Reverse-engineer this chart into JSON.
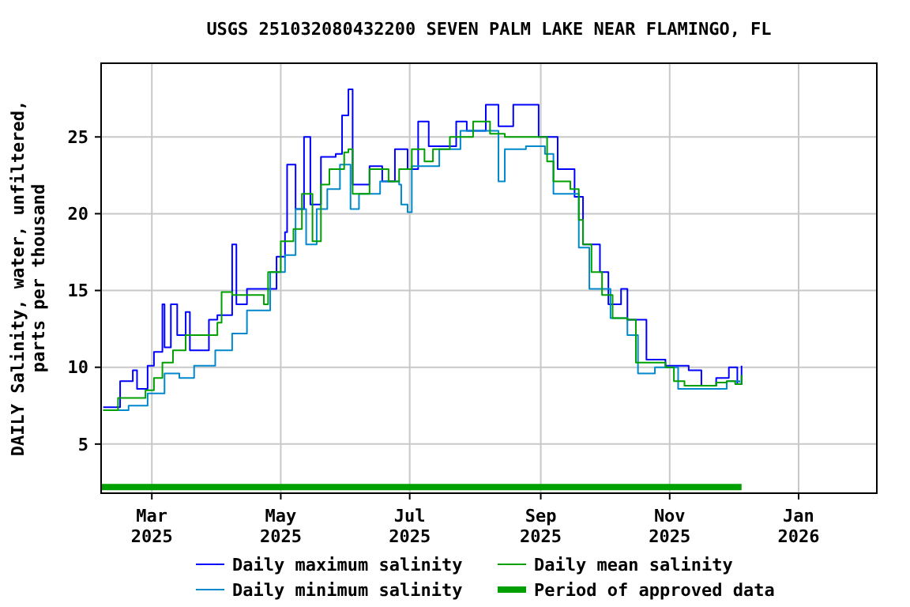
{
  "chart_data": {
    "type": "step",
    "title": "USGS 251032080432200 SEVEN PALM LAKE NEAR FLAMINGO, FL",
    "ylabel": "DAILY Salinity, water, unfiltered,\nparts per thousand",
    "xlim": [
      "2025-02-05",
      "2026-02-07"
    ],
    "xticks": [
      {
        "value": "2025-03-01",
        "label": "Mar 2025"
      },
      {
        "value": "2025-05-01",
        "label": "May 2025"
      },
      {
        "value": "2025-07-01",
        "label": "Jul 2025"
      },
      {
        "value": "2025-09-01",
        "label": "Sep 2025"
      },
      {
        "value": "2025-11-01",
        "label": "Nov 2025"
      },
      {
        "value": "2026-01-01",
        "label": "Jan 2026"
      }
    ],
    "ylim": [
      1.8,
      29.8
    ],
    "yticks": [
      5,
      10,
      15,
      20,
      25
    ],
    "grid": true,
    "legend": "bottom",
    "series": [
      {
        "name": "Daily maximum salinity",
        "color": "#0000ff",
        "x": [
          "2025-02-06",
          "2025-02-14",
          "2025-02-20",
          "2025-02-22",
          "2025-02-27",
          "2025-03-02",
          "2025-03-06",
          "2025-03-07",
          "2025-03-10",
          "2025-03-13",
          "2025-03-17",
          "2025-03-19",
          "2025-03-28",
          "2025-04-01",
          "2025-04-08",
          "2025-04-10",
          "2025-04-15",
          "2025-04-23",
          "2025-04-29",
          "2025-05-03",
          "2025-05-04",
          "2025-05-08",
          "2025-05-12",
          "2025-05-15",
          "2025-05-20",
          "2025-05-27",
          "2025-05-30",
          "2025-06-02",
          "2025-06-04",
          "2025-06-12",
          "2025-06-18",
          "2025-06-24",
          "2025-06-30",
          "2025-07-05",
          "2025-07-10",
          "2025-07-23",
          "2025-07-28",
          "2025-08-06",
          "2025-08-12",
          "2025-08-19",
          "2025-08-25",
          "2025-08-31",
          "2025-09-09",
          "2025-09-17",
          "2025-09-21",
          "2025-09-29",
          "2025-10-03",
          "2025-10-09",
          "2025-10-12",
          "2025-10-21",
          "2025-10-30",
          "2025-11-10",
          "2025-11-16",
          "2025-11-23",
          "2025-11-29",
          "2025-12-03",
          "2025-12-05"
        ],
        "values": [
          7.4,
          9.1,
          9.8,
          8.6,
          10.1,
          11.0,
          14.1,
          11.3,
          14.1,
          12.1,
          13.6,
          11.1,
          13.1,
          13.4,
          18.0,
          14.1,
          15.1,
          15.1,
          17.2,
          18.8,
          23.2,
          20.3,
          25.0,
          20.6,
          23.7,
          23.9,
          26.4,
          28.1,
          21.9,
          23.1,
          22.1,
          24.2,
          22.9,
          26.0,
          24.4,
          26.0,
          25.4,
          27.1,
          25.7,
          27.1,
          27.1,
          25.0,
          22.9,
          21.1,
          18.0,
          16.2,
          14.1,
          15.1,
          13.1,
          10.5,
          10.1,
          9.8,
          8.8,
          9.3,
          10.0,
          8.9,
          10.1
        ]
      },
      {
        "name": "Daily minimum salinity",
        "color": "#0088cc",
        "x": [
          "2025-02-06",
          "2025-02-18",
          "2025-02-27",
          "2025-03-07",
          "2025-03-14",
          "2025-03-21",
          "2025-03-31",
          "2025-04-08",
          "2025-04-15",
          "2025-04-26",
          "2025-05-03",
          "2025-05-08",
          "2025-05-13",
          "2025-05-18",
          "2025-05-23",
          "2025-05-29",
          "2025-06-03",
          "2025-06-07",
          "2025-06-17",
          "2025-06-26",
          "2025-06-27",
          "2025-06-30",
          "2025-07-02",
          "2025-07-15",
          "2025-07-25",
          "2025-08-12",
          "2025-08-15",
          "2025-08-25",
          "2025-09-03",
          "2025-09-07",
          "2025-09-12",
          "2025-09-19",
          "2025-09-24",
          "2025-09-30",
          "2025-10-04",
          "2025-10-12",
          "2025-10-17",
          "2025-10-25",
          "2025-11-05",
          "2025-11-17",
          "2025-11-28",
          "2025-12-04"
        ],
        "values": [
          7.2,
          7.5,
          8.3,
          9.6,
          9.3,
          10.1,
          11.1,
          12.2,
          13.7,
          16.2,
          17.3,
          20.3,
          18.0,
          20.3,
          21.6,
          23.2,
          20.3,
          21.3,
          22.1,
          21.9,
          20.6,
          20.1,
          23.1,
          24.2,
          25.4,
          22.1,
          24.2,
          24.4,
          23.9,
          21.3,
          21.3,
          17.8,
          15.1,
          15.1,
          13.2,
          12.1,
          9.6,
          10.0,
          8.6,
          8.6,
          9.1,
          9.0
        ]
      },
      {
        "name": "Daily mean salinity",
        "color": "#00a000",
        "x": [
          "2025-02-06",
          "2025-02-13",
          "2025-02-26",
          "2025-03-02",
          "2025-03-06",
          "2025-03-11",
          "2025-03-17",
          "2025-03-24",
          "2025-04-01",
          "2025-04-03",
          "2025-04-08",
          "2025-04-23",
          "2025-04-25",
          "2025-05-01",
          "2025-05-07",
          "2025-05-11",
          "2025-05-16",
          "2025-05-20",
          "2025-05-24",
          "2025-05-31",
          "2025-06-02",
          "2025-06-04",
          "2025-06-10",
          "2025-06-12",
          "2025-06-21",
          "2025-06-26",
          "2025-07-02",
          "2025-07-08",
          "2025-07-12",
          "2025-07-20",
          "2025-07-31",
          "2025-08-08",
          "2025-08-15",
          "2025-08-31",
          "2025-09-04",
          "2025-09-07",
          "2025-09-15",
          "2025-09-19",
          "2025-09-21",
          "2025-09-25",
          "2025-09-30",
          "2025-10-05",
          "2025-10-12",
          "2025-10-16",
          "2025-10-30",
          "2025-11-03",
          "2025-11-08",
          "2025-11-17",
          "2025-11-23",
          "2025-11-28",
          "2025-12-02",
          "2025-12-05"
        ],
        "values": [
          7.2,
          8.0,
          8.5,
          9.3,
          10.3,
          11.1,
          12.1,
          12.1,
          12.9,
          14.9,
          14.7,
          14.1,
          16.2,
          18.2,
          19.0,
          21.3,
          18.2,
          21.9,
          22.9,
          24.0,
          24.2,
          21.3,
          21.3,
          22.9,
          22.1,
          22.9,
          24.2,
          23.4,
          24.2,
          25.0,
          26.0,
          25.2,
          25.0,
          25.0,
          23.4,
          22.1,
          21.6,
          19.6,
          18.0,
          16.2,
          14.7,
          13.2,
          13.1,
          10.3,
          10.0,
          9.1,
          8.8,
          8.8,
          9.0,
          9.1,
          8.9,
          9.5
        ]
      },
      {
        "name": "Period of approved data",
        "type": "line",
        "color": "#00a000",
        "x": [
          "2025-02-05",
          "2025-12-05"
        ],
        "values": [
          2.2,
          2.2
        ]
      }
    ]
  }
}
